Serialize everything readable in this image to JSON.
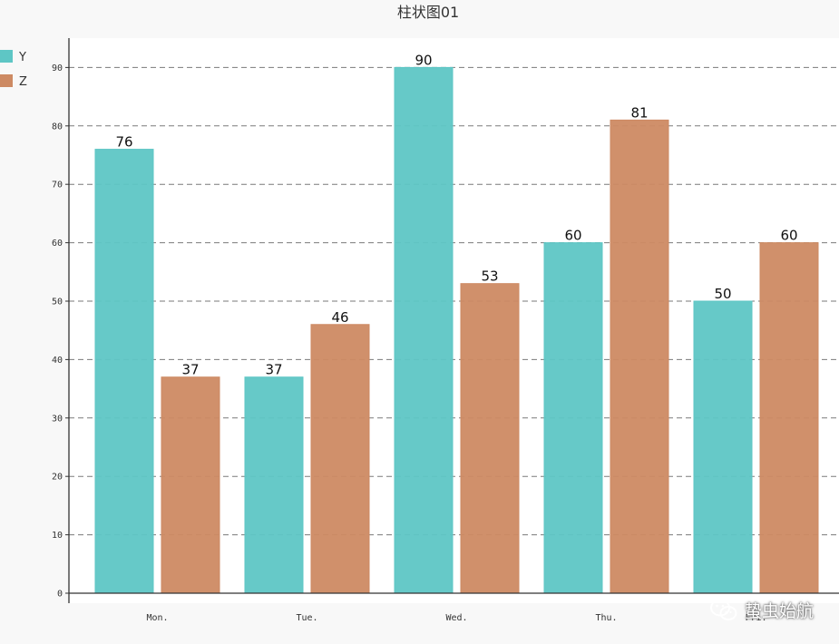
{
  "chart_data": {
    "type": "bar",
    "title": "柱状图01",
    "categories": [
      "Mon.",
      "Tue.",
      "Wed.",
      "Thu.",
      "Fri."
    ],
    "series": [
      {
        "name": "Y",
        "values": [
          76,
          37,
          90,
          60,
          50
        ],
        "color": "#5ec6c5"
      },
      {
        "name": "Z",
        "values": [
          37,
          46,
          53,
          81,
          60
        ],
        "color": "#cd8a63"
      }
    ],
    "ylim": [
      0,
      95
    ],
    "yticks": [
      0,
      10,
      20,
      30,
      40,
      50,
      60,
      70,
      80,
      90
    ],
    "grid": true,
    "legend": "top-left",
    "data_labels": true
  },
  "watermark": {
    "text": "蛰虫始航",
    "icon": "wechat-icon"
  }
}
